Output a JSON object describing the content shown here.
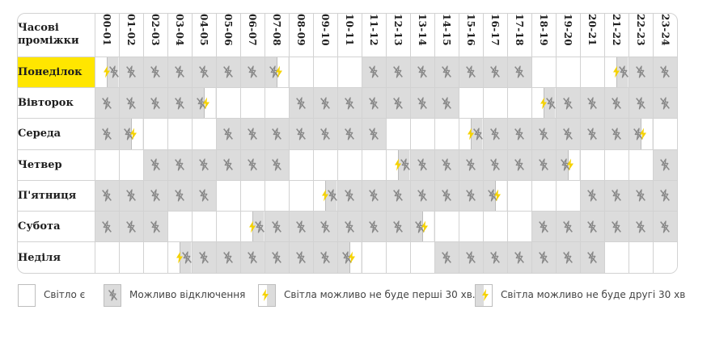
{
  "colors": {
    "today_highlight": "#ffe600",
    "outage_cell": "#dcdcdc",
    "border": "#d2d2d2",
    "icon_grey": "#888888",
    "bolt_yellow": "#f5d200"
  },
  "table": {
    "corner_line1": "Часові",
    "corner_line2": "проміжки",
    "hours": [
      "00-01",
      "01-02",
      "02-03",
      "03-04",
      "04-05",
      "05-06",
      "06-07",
      "07-08",
      "08-09",
      "09-10",
      "10-11",
      "11-12",
      "12-13",
      "13-14",
      "14-15",
      "15-16",
      "16-17",
      "17-18",
      "18-19",
      "19-20",
      "20-21",
      "21-22",
      "22-23",
      "23-24"
    ],
    "today_index": 0,
    "days": [
      {
        "name": "Понеділок",
        "slots": [
          "first",
          "no",
          "no",
          "no",
          "no",
          "no",
          "no",
          "second",
          "yes",
          "yes",
          "yes",
          "no",
          "no",
          "no",
          "no",
          "no",
          "no",
          "no",
          "yes",
          "yes",
          "yes",
          "first",
          "no",
          "no"
        ]
      },
      {
        "name": "Вівторок",
        "slots": [
          "no",
          "no",
          "no",
          "no",
          "second",
          "yes",
          "yes",
          "yes",
          "no",
          "no",
          "no",
          "no",
          "no",
          "no",
          "no",
          "yes",
          "yes",
          "yes",
          "first",
          "no",
          "no",
          "no",
          "no",
          "no"
        ]
      },
      {
        "name": "Середа",
        "slots": [
          "no",
          "second",
          "yes",
          "yes",
          "yes",
          "no",
          "no",
          "no",
          "no",
          "no",
          "no",
          "no",
          "yes",
          "yes",
          "yes",
          "first",
          "no",
          "no",
          "no",
          "no",
          "no",
          "no",
          "second",
          "yes"
        ]
      },
      {
        "name": "Четвер",
        "slots": [
          "yes",
          "yes",
          "no",
          "no",
          "no",
          "no",
          "no",
          "no",
          "yes",
          "yes",
          "yes",
          "yes",
          "first",
          "no",
          "no",
          "no",
          "no",
          "no",
          "no",
          "second",
          "yes",
          "yes",
          "yes",
          "no"
        ]
      },
      {
        "name": "П'ятниця",
        "slots": [
          "no",
          "no",
          "no",
          "no",
          "no",
          "yes",
          "yes",
          "yes",
          "yes",
          "first",
          "no",
          "no",
          "no",
          "no",
          "no",
          "no",
          "second",
          "yes",
          "yes",
          "yes",
          "no",
          "no",
          "no",
          "no"
        ]
      },
      {
        "name": "Субота",
        "slots": [
          "no",
          "no",
          "no",
          "yes",
          "yes",
          "yes",
          "first",
          "no",
          "no",
          "no",
          "no",
          "no",
          "no",
          "second",
          "yes",
          "yes",
          "yes",
          "yes",
          "no",
          "no",
          "no",
          "no",
          "no",
          "no"
        ]
      },
      {
        "name": "Неділя",
        "slots": [
          "yes",
          "yes",
          "yes",
          "first",
          "no",
          "no",
          "no",
          "no",
          "no",
          "no",
          "second",
          "yes",
          "yes",
          "yes",
          "no",
          "no",
          "no",
          "no",
          "no",
          "no",
          "no",
          "yes",
          "yes",
          "yes"
        ]
      }
    ]
  },
  "legend": {
    "power_on": "Світло є",
    "possible_outage": "Можливо відключення",
    "no_power_first_30": "Світла можливо не буде перші 30 хв.",
    "no_power_second_30": "Світла можливо не буде другі 30 хв"
  },
  "icons": {
    "outage": "power-off-icon",
    "half": "lightning-bolt-icon"
  }
}
